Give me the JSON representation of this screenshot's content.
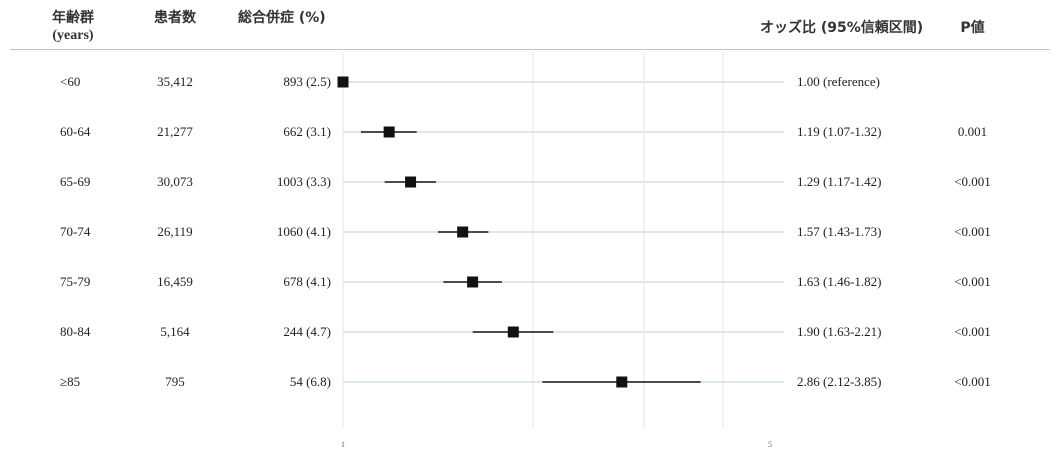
{
  "headers": {
    "age_group": "年齢群",
    "age_unit": "(years)",
    "patients": "患者数",
    "complications": "総合併症 (%)",
    "odds_ratio": "オッズ比 (95%信頼区間)",
    "p_value": "P値"
  },
  "rows": [
    {
      "age": "<60",
      "patients": "35,412",
      "complications": "893 (2.5)",
      "or_text": "1.00 (reference)",
      "p": ""
    },
    {
      "age": "60-64",
      "patients": "21,277",
      "complications": "662 (3.1)",
      "or_text": "1.19 (1.07-1.32)",
      "p": "0.001"
    },
    {
      "age": "65-69",
      "patients": "30,073",
      "complications": "1003 (3.3)",
      "or_text": "1.29 (1.17-1.42)",
      "p": "<0.001"
    },
    {
      "age": "70-74",
      "patients": "26,119",
      "complications": "1060 (4.1)",
      "or_text": "1.57 (1.43-1.73)",
      "p": "<0.001"
    },
    {
      "age": "75-79",
      "patients": "16,459",
      "complications": "678 (4.1)",
      "or_text": "1.63 (1.46-1.82)",
      "p": "<0.001"
    },
    {
      "age": "80-84",
      "patients": "5,164",
      "complications": "244 (4.7)",
      "or_text": "1.90 (1.63-2.21)",
      "p": "<0.001"
    },
    {
      "age": "≥85",
      "patients": "795",
      "complications": "54 (6.8)",
      "or_text": "2.86 (2.12-3.85)",
      "p": "<0.001"
    }
  ],
  "chart_data": {
    "type": "scatter",
    "subtype": "forest-plot",
    "categories": [
      "<60",
      "60-64",
      "65-69",
      "70-74",
      "75-79",
      "80-84",
      "≥85"
    ],
    "values": [
      1.0,
      1.19,
      1.29,
      1.57,
      1.63,
      1.9,
      2.86
    ],
    "ci_lower": [
      1.0,
      1.07,
      1.17,
      1.43,
      1.46,
      1.63,
      2.12
    ],
    "ci_upper": [
      1.0,
      1.32,
      1.42,
      1.73,
      1.82,
      2.21,
      3.85
    ],
    "xlim": [
      1,
      5
    ],
    "x_ticks": [
      "1",
      "5"
    ],
    "x_scale": "log",
    "grid": true,
    "marker_color": "#111111",
    "ci_color": "#111111",
    "grid_color": "#e4e4e4",
    "axis_color": "#b9cde0"
  }
}
